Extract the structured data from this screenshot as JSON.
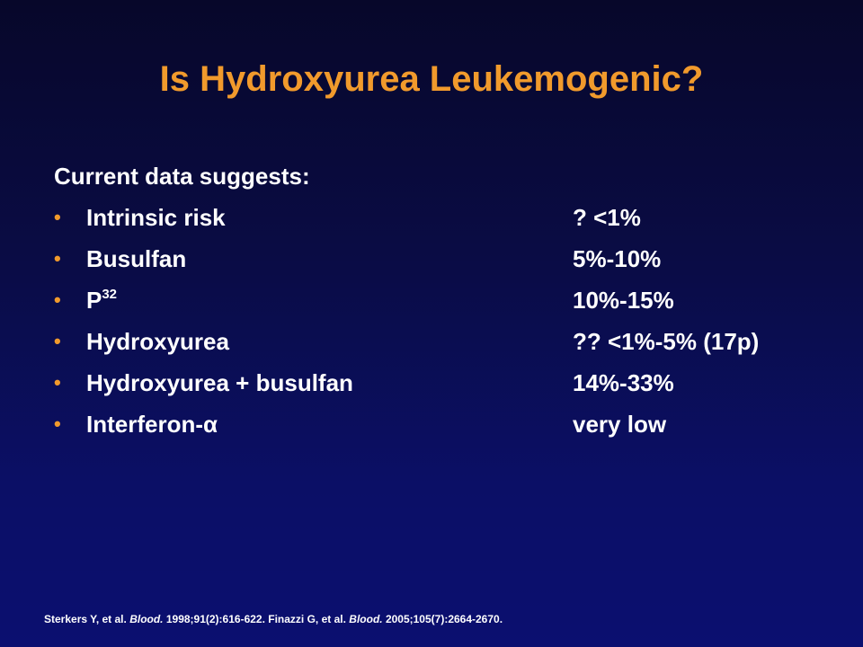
{
  "slide": {
    "title": "Is Hydroxyurea Leukemogenic?",
    "intro": "Current data suggests:",
    "bullet_glyph": "•",
    "rows": [
      {
        "label": "Intrinsic risk",
        "value": "? <1%"
      },
      {
        "label": "Busulfan",
        "value": "5%-10%"
      },
      {
        "label": "P",
        "label_sup": "32",
        "value": "10%-15%"
      },
      {
        "label": "Hydroxyurea",
        "value": "?? <1%-5% (17p)"
      },
      {
        "label": "Hydroxyurea + busulfan",
        "value": "14%-33%"
      },
      {
        "label": "Interferon-α",
        "value": "very low"
      }
    ],
    "reference": {
      "part1": "Sterkers Y, et al. ",
      "journal1": "Blood.",
      "part2": " 1998;91(2):616-622. Finazzi G, et al. ",
      "journal2": "Blood.",
      "part3": " 2005;105(7):2664-2670."
    }
  },
  "colors": {
    "title": "#f19a2c",
    "bullet": "#f19a2c",
    "text": "#ffffff",
    "background_top": "#07072a",
    "background_bottom": "#0b0f70"
  }
}
